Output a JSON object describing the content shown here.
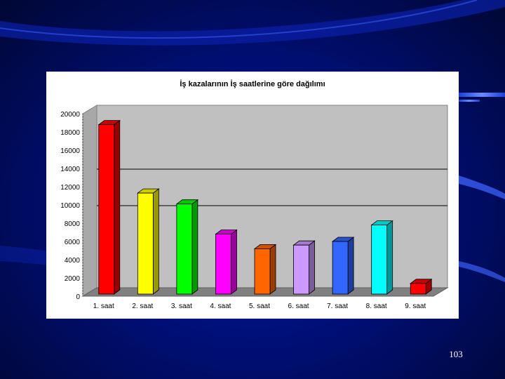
{
  "slide": {
    "number": "103",
    "colors": {
      "background": "#000f78",
      "panel": "#ffffff",
      "plot_area": "#c0c0c0",
      "floor": "#808080"
    }
  },
  "chart_data": {
    "type": "bar",
    "title": "İş kazalarının İş saatlerine göre dağılımı",
    "xlabel": "",
    "ylabel": "",
    "categories": [
      "1. saat",
      "2. saat",
      "3. saat",
      "4. saat",
      "5. saat",
      "6. saat",
      "7. saat",
      "8. saat",
      "9. saat"
    ],
    "values": [
      18800,
      11300,
      10100,
      6800,
      5200,
      5600,
      6000,
      7800,
      1400
    ],
    "colors": [
      "#ff0000",
      "#ffff00",
      "#00ff00",
      "#ff00ff",
      "#ff6600",
      "#cc99ff",
      "#3366ff",
      "#00ffff",
      "#ff0000"
    ],
    "ylim": [
      0,
      20000
    ],
    "yticks": [
      "0",
      "2000",
      "4000",
      "6000",
      "8000",
      "10000",
      "12000",
      "14000",
      "16000",
      "18000",
      "20000"
    ],
    "gridlines": [
      9000,
      13000
    ],
    "grid": true,
    "legend": "none",
    "style": "3d-column"
  }
}
